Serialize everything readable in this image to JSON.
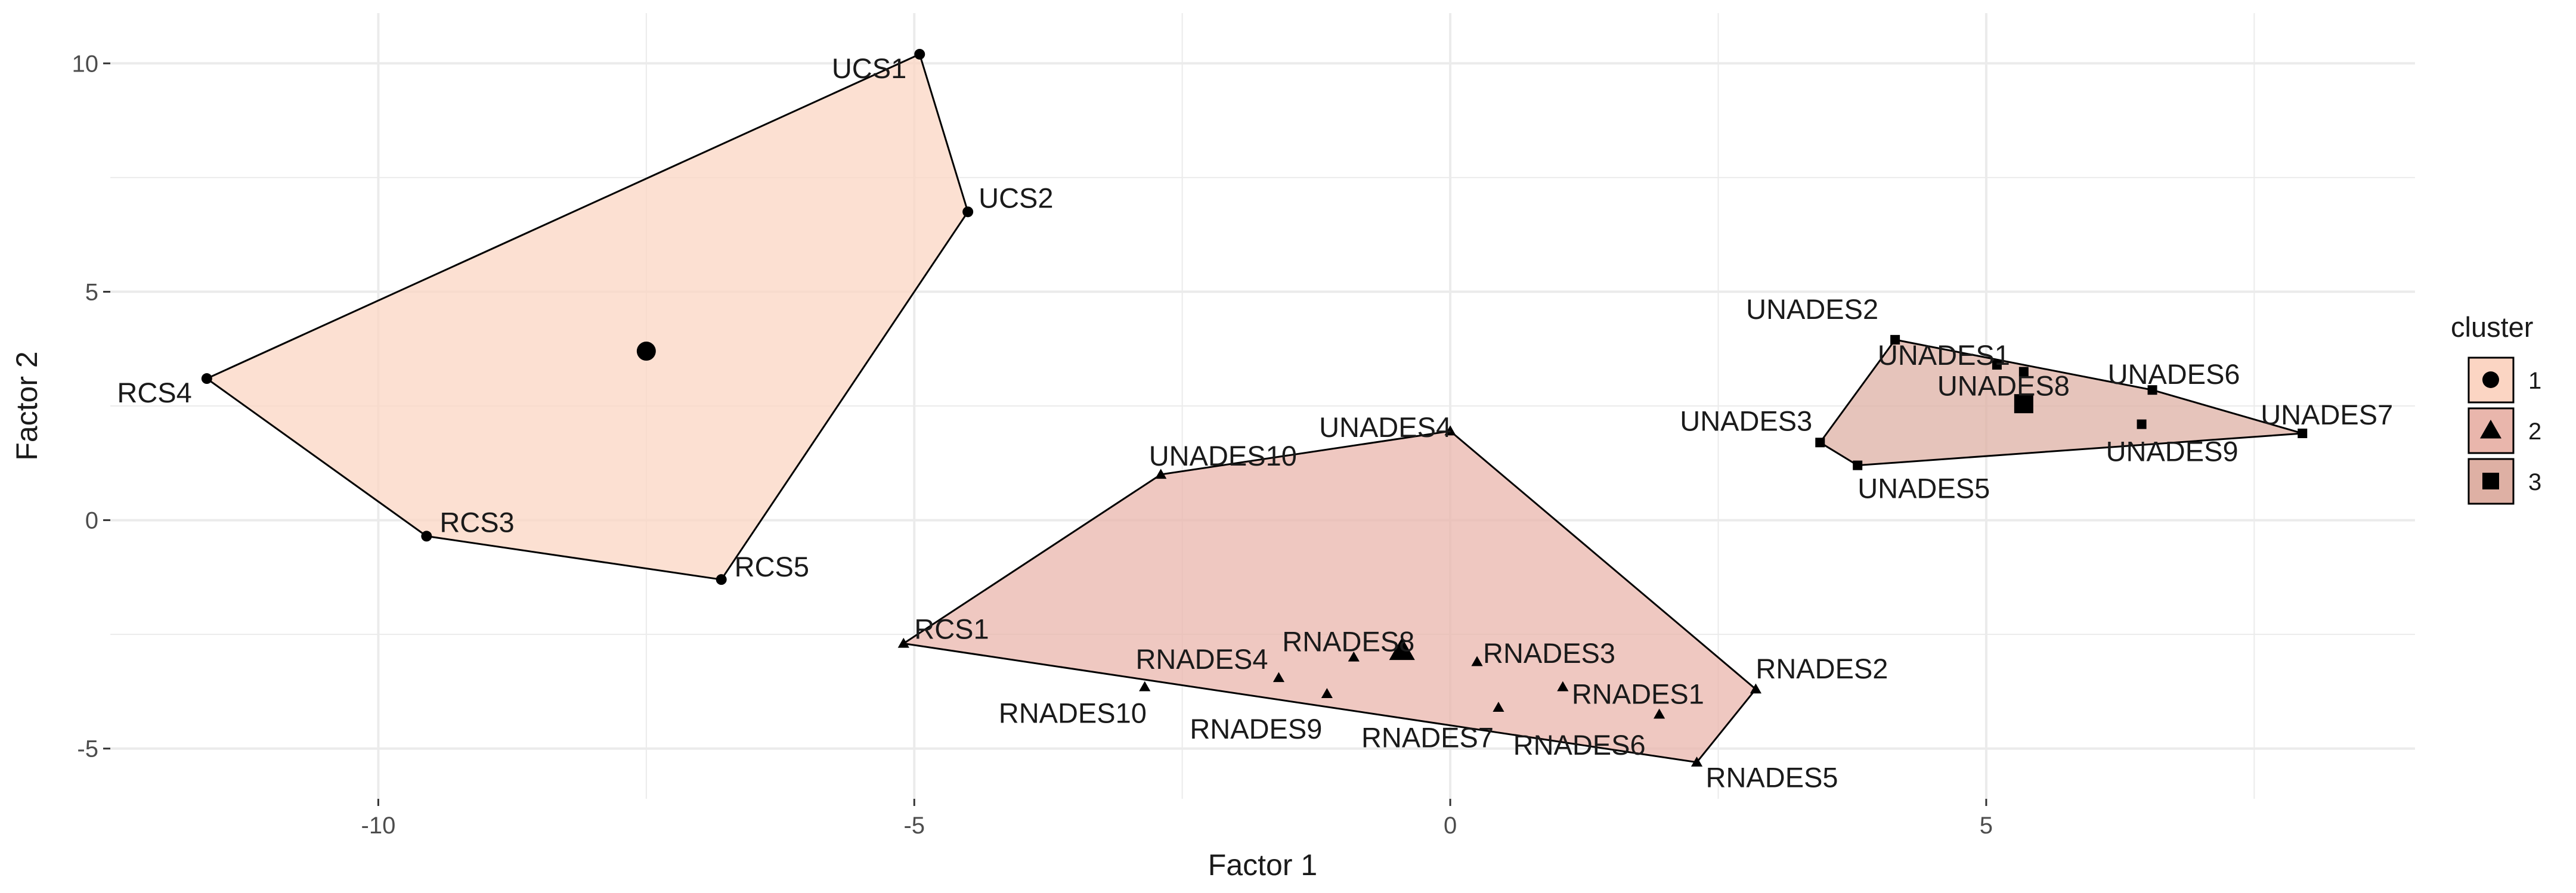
{
  "chart_data": {
    "type": "scatter",
    "title": "",
    "xlabel": "Factor 1",
    "ylabel": "Factor 2",
    "xlim": [
      -12.5,
      9
    ],
    "ylim": [
      -6.1,
      11.1
    ],
    "xticks": [
      -10,
      -5,
      0,
      5
    ],
    "yticks": [
      -5,
      0,
      5,
      10
    ],
    "grid": true,
    "legend": {
      "title": "cluster",
      "position": "right",
      "entries": [
        {
          "label": "1",
          "shape": "circle"
        },
        {
          "label": "2",
          "shape": "triangle"
        },
        {
          "label": "3",
          "shape": "square"
        }
      ]
    },
    "colors": {
      "hull_fill_1": "#fbd5c3",
      "hull_fill_2": "#e9b6ac",
      "hull_fill_3": "#deb0a4",
      "hull_stroke": "#000000",
      "points": "#000000",
      "grid": "#ebebeb",
      "background": "#ffffff"
    },
    "series": [
      {
        "name": "1",
        "shape": "circle",
        "centroid": {
          "x": -7.5,
          "y": 3.7
        },
        "hull": [
          "UCS1",
          "UCS2",
          "RCS5",
          "RCS3",
          "RCS4"
        ],
        "points": [
          {
            "label": "UCS1",
            "x": -4.95,
            "y": 10.2
          },
          {
            "label": "UCS2",
            "x": -4.5,
            "y": 6.75
          },
          {
            "label": "RCS4",
            "x": -11.6,
            "y": 3.1
          },
          {
            "label": "RCS3",
            "x": -9.55,
            "y": -0.35
          },
          {
            "label": "RCS5",
            "x": -6.8,
            "y": -1.3
          }
        ]
      },
      {
        "name": "2",
        "shape": "triangle",
        "centroid": {
          "x": -0.45,
          "y": -2.85
        },
        "hull": [
          "UNADES4",
          "RNADES2",
          "RNADES5",
          "RCS1",
          "UNADES10"
        ],
        "points": [
          {
            "label": "UNADES10",
            "x": -2.7,
            "y": 1.0
          },
          {
            "label": "UNADES4",
            "x": 0.0,
            "y": 1.95
          },
          {
            "label": "RCS1",
            "x": -5.1,
            "y": -2.7
          },
          {
            "label": "RNADES8",
            "x": -0.9,
            "y": -3.0
          },
          {
            "label": "RNADES3",
            "x": 0.25,
            "y": -3.1
          },
          {
            "label": "RNADES4",
            "x": -1.6,
            "y": -3.45
          },
          {
            "label": "RNADES10",
            "x": -2.85,
            "y": -3.65
          },
          {
            "label": "RNADES9",
            "x": -1.15,
            "y": -3.8
          },
          {
            "label": "RNADES1",
            "x": 1.05,
            "y": -3.65
          },
          {
            "label": "RNADES2",
            "x": 2.85,
            "y": -3.7
          },
          {
            "label": "RNADES7",
            "x": 0.45,
            "y": -4.1
          },
          {
            "label": "RNADES6",
            "x": 1.95,
            "y": -4.25
          },
          {
            "label": "RNADES5",
            "x": 2.3,
            "y": -5.3
          }
        ]
      },
      {
        "name": "3",
        "shape": "square",
        "centroid": {
          "x": 5.35,
          "y": 2.55
        },
        "hull": [
          "UNADES2",
          "UNADES6",
          "UNADES7",
          "UNADES5",
          "UNADES3"
        ],
        "points": [
          {
            "label": "UNADES2",
            "x": 4.15,
            "y": 3.95
          },
          {
            "label": "UNADES1",
            "x": 5.1,
            "y": 3.4
          },
          {
            "label": "UNADES8",
            "x": 5.35,
            "y": 3.25
          },
          {
            "label": "UNADES6",
            "x": 6.55,
            "y": 2.85
          },
          {
            "label": "UNADES3",
            "x": 3.45,
            "y": 1.7
          },
          {
            "label": "UNADES9",
            "x": 6.45,
            "y": 2.1
          },
          {
            "label": "UNADES7",
            "x": 7.95,
            "y": 1.9
          },
          {
            "label": "UNADES5",
            "x": 3.8,
            "y": 1.2
          }
        ]
      }
    ]
  }
}
